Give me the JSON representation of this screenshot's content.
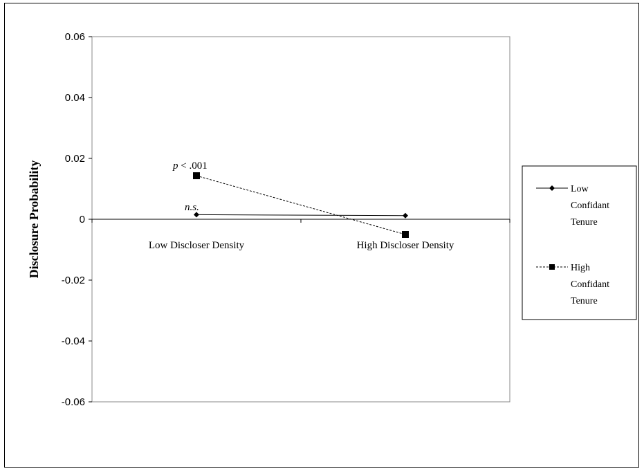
{
  "chart_data": {
    "type": "line",
    "ylabel": "Disclosure Probability",
    "ylim": [
      -0.06,
      0.06
    ],
    "yticks": [
      "0.06",
      "0.04",
      "0.02",
      "0",
      "-0.02",
      "-0.04",
      "-0.06"
    ],
    "categories": [
      "Low Discloser Density",
      "High Discloser Density"
    ],
    "series": [
      {
        "name": "Low Confidant Tenure",
        "values": [
          0.0015,
          0.0012
        ],
        "marker": "diamond",
        "style": "solid",
        "color": "#000000"
      },
      {
        "name": "High Confidant Tenure",
        "values": [
          0.0143,
          -0.005
        ],
        "marker": "square",
        "style": "dashed",
        "color": "#000000"
      }
    ],
    "annotations": {
      "p_italic": "p",
      "p_rest": " < .001",
      "ns": "n.s."
    },
    "legend": {
      "position": "right",
      "low_lines": [
        "Low",
        "Confidant",
        "Tenure"
      ],
      "high_lines": [
        "High",
        "Confidant",
        "Tenure"
      ]
    },
    "grid": false
  }
}
